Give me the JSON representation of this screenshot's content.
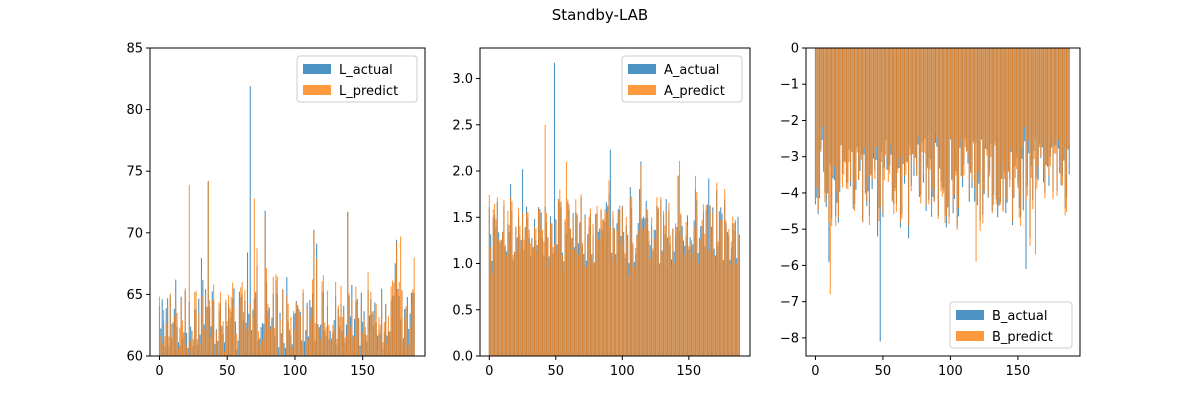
{
  "figure": {
    "suptitle": "Standby-LAB"
  },
  "colors": {
    "actual": "#1f77b4",
    "predict": "#ff7f0e"
  },
  "chart_data": [
    {
      "type": "bar",
      "title": "",
      "xlabel": "",
      "ylabel": "",
      "xlim": [
        -7,
        196
      ],
      "ylim": [
        60,
        85
      ],
      "xticks": [
        0,
        50,
        100,
        150
      ],
      "yticks": [
        60,
        65,
        70,
        75,
        80,
        85
      ],
      "legend_position": "top-right",
      "alpha": 0.8,
      "x_range": [
        0,
        189
      ],
      "series": [
        {
          "name": "L_actual",
          "color": "#1f77b4",
          "highlights": [
            {
              "x": 67,
              "value": 81.9
            },
            {
              "x": 65,
              "value": 68.4
            },
            {
              "x": 139,
              "value": 71.7
            },
            {
              "x": 36,
              "value": 74.2
            },
            {
              "x": 12,
              "value": 66.2
            },
            {
              "x": 2,
              "value": 64.6
            }
          ]
        },
        {
          "name": "L_predict",
          "color": "#ff7f0e",
          "highlights": [
            {
              "x": 70,
              "value": 72.8
            },
            {
              "x": 22,
              "value": 73.9
            },
            {
              "x": 36,
              "value": 74.2
            },
            {
              "x": 139,
              "value": 71.7
            },
            {
              "x": 178,
              "value": 69.7
            },
            {
              "x": 188,
              "value": 68.0
            }
          ]
        }
      ]
    },
    {
      "type": "bar",
      "title": "",
      "xlabel": "",
      "ylabel": "",
      "xlim": [
        -7,
        196
      ],
      "ylim": [
        0,
        3.33
      ],
      "xticks": [
        0,
        50,
        100,
        150
      ],
      "yticks": [
        0.0,
        0.5,
        1.0,
        1.5,
        2.0,
        2.5,
        3.0
      ],
      "legend_position": "top-right",
      "alpha": 0.8,
      "x_range": [
        0,
        189
      ],
      "series": [
        {
          "name": "A_actual",
          "color": "#1f77b4",
          "highlights": [
            {
              "x": 49,
              "value": 3.17
            },
            {
              "x": 25,
              "value": 2.02
            },
            {
              "x": 91,
              "value": 2.23
            },
            {
              "x": 165,
              "value": 1.92
            }
          ]
        },
        {
          "name": "A_predict",
          "color": "#ff7f0e",
          "highlights": [
            {
              "x": 42,
              "value": 2.5
            },
            {
              "x": 58,
              "value": 2.1
            },
            {
              "x": 143,
              "value": 2.11
            },
            {
              "x": 187,
              "value": 1.33
            }
          ]
        }
      ]
    },
    {
      "type": "bar",
      "title": "",
      "xlabel": "",
      "ylabel": "",
      "xlim": [
        -7,
        196
      ],
      "ylim": [
        -8.5,
        0
      ],
      "xticks": [
        0,
        50,
        100,
        150
      ],
      "yticks": [
        0,
        -1,
        -2,
        -3,
        -4,
        -5,
        -6,
        -7,
        -8
      ],
      "legend_position": "bottom-right",
      "alpha": 0.8,
      "x_range": [
        0,
        189
      ],
      "series": [
        {
          "name": "B_actual",
          "color": "#1f77b4",
          "highlights": [
            {
              "x": 48,
              "value": -8.1
            },
            {
              "x": 46,
              "value": -5.2
            },
            {
              "x": 10,
              "value": -5.9
            },
            {
              "x": 156,
              "value": -6.1
            }
          ]
        },
        {
          "name": "B_predict",
          "color": "#ff7f0e",
          "highlights": [
            {
              "x": 11,
              "value": -6.8
            },
            {
              "x": 119,
              "value": -5.9
            },
            {
              "x": 163,
              "value": -5.7
            },
            {
              "x": 188,
              "value": -2.8
            }
          ]
        }
      ]
    }
  ]
}
